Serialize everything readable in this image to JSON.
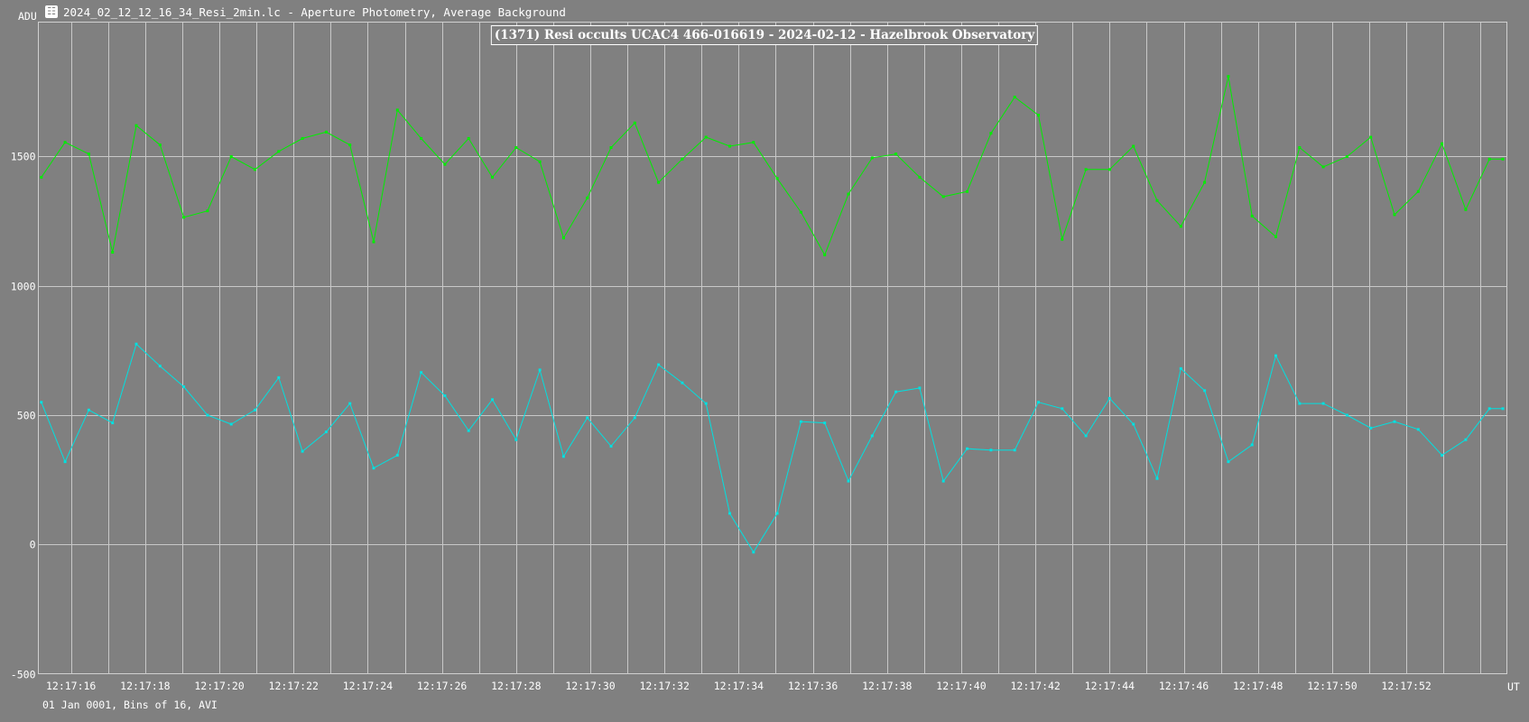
{
  "window": {
    "title": "2024_02_12_12_16_34_Resi_2min.lc - Aperture Photometry, Average Background",
    "icon": "lightcurve-app-icon"
  },
  "y_unit_label": "ADU",
  "x_unit_label": "UT",
  "footer": "01 Jan 0001, Bins of 16, AVI",
  "chart_data": {
    "type": "line",
    "title": "(1371) Resi occults UCAC4 466-016619 - 2024-02-12 - Hazelbrook Observatory",
    "ylabel": "ADU",
    "xlabel": "UT",
    "ylim": [
      -500,
      2020
    ],
    "xlim": [
      15.12,
      54.71
    ],
    "grid": true,
    "y_ticks": [
      -500,
      0,
      500,
      1000,
      1500
    ],
    "y_tick_labels": [
      "-500",
      "0",
      "500",
      "1000",
      "1500"
    ],
    "x_ticks": [
      16,
      18,
      20,
      22,
      24,
      26,
      28,
      30,
      32,
      34,
      36,
      38,
      40,
      42,
      44,
      46,
      48,
      50,
      52
    ],
    "x_tick_labels": [
      "12:17:16",
      "12:17:18",
      "12:17:20",
      "12:17:22",
      "12:17:24",
      "12:17:26",
      "12:17:28",
      "12:17:30",
      "12:17:32",
      "12:17:34",
      "12:17:36",
      "12:17:38",
      "12:17:40",
      "12:17:42",
      "12:17:44",
      "12:17:46",
      "12:17:48",
      "12:17:50",
      "12:17:52"
    ],
    "x_minor_gridlines": [
      17,
      19,
      21,
      23,
      25,
      27,
      29,
      31,
      33,
      35,
      37,
      39,
      41,
      43,
      45,
      47,
      49,
      51,
      53,
      54
    ],
    "x": [
      15.2,
      15.84,
      16.48,
      17.12,
      17.76,
      18.4,
      19.04,
      19.68,
      20.32,
      20.96,
      21.6,
      22.24,
      22.88,
      23.52,
      24.16,
      24.8,
      25.44,
      26.08,
      26.72,
      27.36,
      28.0,
      28.64,
      29.28,
      29.92,
      30.56,
      31.2,
      31.84,
      32.48,
      33.12,
      33.76,
      34.4,
      35.04,
      35.68,
      36.32,
      36.96,
      37.6,
      38.24,
      38.88,
      39.52,
      40.16,
      40.8,
      41.44,
      42.08,
      42.72,
      43.36,
      44.0,
      44.64,
      45.28,
      45.92,
      46.56,
      47.2,
      47.84,
      48.48,
      49.12,
      49.76,
      50.4,
      51.04,
      51.68,
      52.32,
      52.96,
      53.6,
      54.24,
      54.6
    ],
    "series": [
      {
        "color": "#00ee00",
        "values": [
          1420,
          1555,
          1510,
          1130,
          1620,
          1545,
          1265,
          1290,
          1500,
          1450,
          1520,
          1570,
          1595,
          1545,
          1170,
          1680,
          1570,
          1470,
          1570,
          1420,
          1535,
          1480,
          1185,
          1340,
          1535,
          1630,
          1400,
          1490,
          1575,
          1540,
          1555,
          1415,
          1285,
          1120,
          1355,
          1495,
          1510,
          1420,
          1345,
          1365,
          1590,
          1730,
          1660,
          1180,
          1450,
          1450,
          1540,
          1330,
          1230,
          1400,
          1810,
          1270,
          1190,
          1535,
          1460,
          1500,
          1575,
          1275,
          1365,
          1550,
          1295,
          1490,
          1490
        ]
      },
      {
        "color": "#00e0e0",
        "values": [
          550,
          320,
          520,
          470,
          775,
          690,
          610,
          500,
          465,
          520,
          645,
          360,
          435,
          545,
          295,
          345,
          665,
          575,
          440,
          560,
          405,
          675,
          340,
          490,
          380,
          490,
          695,
          625,
          545,
          120,
          -30,
          120,
          475,
          470,
          245,
          420,
          590,
          605,
          245,
          370,
          365,
          365,
          550,
          525,
          420,
          565,
          465,
          255,
          680,
          595,
          320,
          385,
          730,
          545,
          545,
          500,
          450,
          475,
          445,
          345,
          405,
          525,
          525
        ]
      }
    ]
  }
}
